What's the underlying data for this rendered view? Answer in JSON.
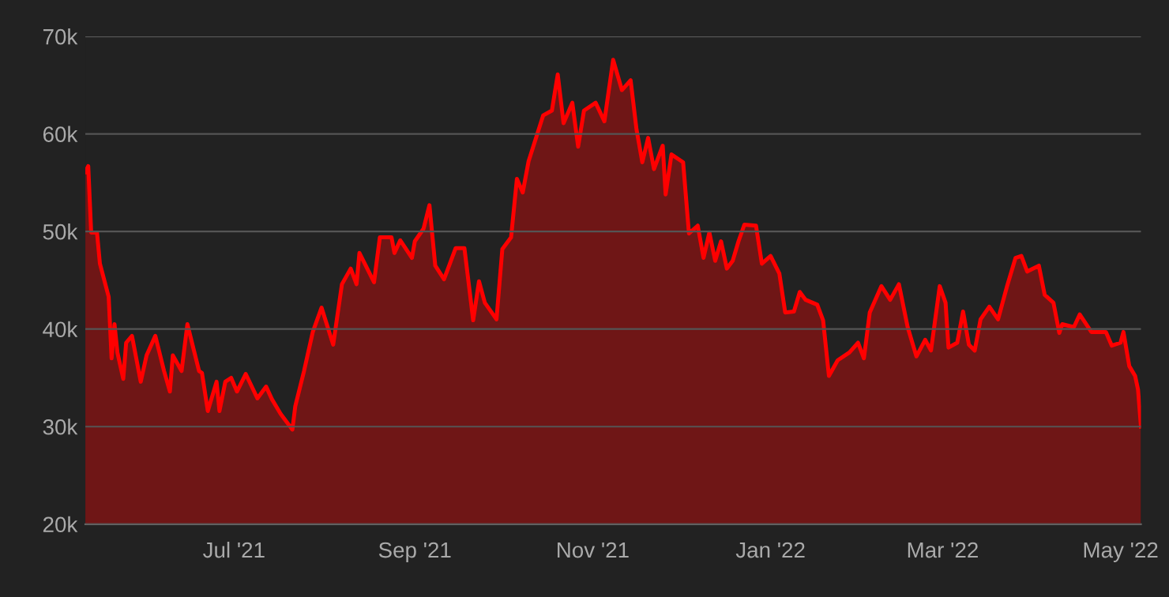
{
  "chart_data": {
    "type": "area",
    "color": "#ff0000",
    "grid": "y",
    "legend": false,
    "marker": "none",
    "line_style": "solid",
    "ylim": [
      20000,
      70000
    ],
    "yticks": [
      {
        "value": 20000,
        "label": "20k"
      },
      {
        "value": 30000,
        "label": "30k"
      },
      {
        "value": 40000,
        "label": "40k"
      },
      {
        "value": 50000,
        "label": "50k"
      },
      {
        "value": 60000,
        "label": "60k"
      },
      {
        "value": 70000,
        "label": "70k"
      }
    ],
    "xlim": [
      "2021-05-11",
      "2022-05-08"
    ],
    "xticks": [
      {
        "value": "2021-07-01",
        "label": "Jul '21"
      },
      {
        "value": "2021-09-01",
        "label": "Sep '21"
      },
      {
        "value": "2021-11-01",
        "label": "Nov '21"
      },
      {
        "value": "2022-01-01",
        "label": "Jan '22"
      },
      {
        "value": "2022-03-01",
        "label": "Mar '22"
      },
      {
        "value": "2022-05-01",
        "label": "May '22"
      }
    ],
    "x": [
      "2021-05-11",
      "2021-05-12",
      "2021-05-13",
      "2021-05-15",
      "2021-05-16",
      "2021-05-19",
      "2021-05-20",
      "2021-05-21",
      "2021-05-22",
      "2021-05-24",
      "2021-05-25",
      "2021-05-27",
      "2021-05-30",
      "2021-06-01",
      "2021-06-04",
      "2021-06-07",
      "2021-06-09",
      "2021-06-10",
      "2021-06-13",
      "2021-06-15",
      "2021-06-19",
      "2021-06-20",
      "2021-06-22",
      "2021-06-25",
      "2021-06-26",
      "2021-06-28",
      "2021-06-30",
      "2021-07-02",
      "2021-07-05",
      "2021-07-09",
      "2021-07-12",
      "2021-07-14",
      "2021-07-17",
      "2021-07-21",
      "2021-07-22",
      "2021-07-25",
      "2021-07-28",
      "2021-07-31",
      "2021-08-04",
      "2021-08-07",
      "2021-08-10",
      "2021-08-12",
      "2021-08-13",
      "2021-08-18",
      "2021-08-20",
      "2021-08-24",
      "2021-08-25",
      "2021-08-27",
      "2021-08-31",
      "2021-09-01",
      "2021-09-04",
      "2021-09-06",
      "2021-09-08",
      "2021-09-11",
      "2021-09-12",
      "2021-09-15",
      "2021-09-18",
      "2021-09-21",
      "2021-09-23",
      "2021-09-25",
      "2021-09-29",
      "2021-10-01",
      "2021-10-04",
      "2021-10-06",
      "2021-10-08",
      "2021-10-10",
      "2021-10-15",
      "2021-10-18",
      "2021-10-20",
      "2021-10-22",
      "2021-10-25",
      "2021-10-27",
      "2021-10-29",
      "2021-11-02",
      "2021-11-05",
      "2021-11-08",
      "2021-11-11",
      "2021-11-14",
      "2021-11-16",
      "2021-11-18",
      "2021-11-20",
      "2021-11-22",
      "2021-11-25",
      "2021-11-26",
      "2021-11-28",
      "2021-12-02",
      "2021-12-04",
      "2021-12-07",
      "2021-12-09",
      "2021-12-11",
      "2021-12-13",
      "2021-12-15",
      "2021-12-17",
      "2021-12-19",
      "2021-12-21",
      "2021-12-23",
      "2021-12-27",
      "2021-12-29",
      "2022-01-01",
      "2022-01-04",
      "2022-01-06",
      "2022-01-09",
      "2022-01-11",
      "2022-01-13",
      "2022-01-17",
      "2022-01-19",
      "2022-01-21",
      "2022-01-24",
      "2022-01-28",
      "2022-01-31",
      "2022-02-02",
      "2022-02-04",
      "2022-02-08",
      "2022-02-11",
      "2022-02-14",
      "2022-02-17",
      "2022-02-20",
      "2022-02-23",
      "2022-02-25",
      "2022-02-28",
      "2022-03-02",
      "2022-03-03",
      "2022-03-06",
      "2022-03-08",
      "2022-03-10",
      "2022-03-12",
      "2022-03-14",
      "2022-03-17",
      "2022-03-20",
      "2022-03-23",
      "2022-03-26",
      "2022-03-28",
      "2022-03-30",
      "2022-04-03",
      "2022-04-05",
      "2022-04-08",
      "2022-04-10",
      "2022-04-11",
      "2022-04-15",
      "2022-04-17",
      "2022-04-21",
      "2022-04-24",
      "2022-04-26",
      "2022-04-28",
      "2022-05-01",
      "2022-05-02",
      "2022-05-04",
      "2022-05-06",
      "2022-05-07",
      "2022-05-08"
    ],
    "values": [
      56100,
      56700,
      49900,
      49900,
      46700,
      43300,
      37000,
      40500,
      37600,
      34900,
      38600,
      39300,
      34600,
      37300,
      39300,
      35700,
      33600,
      37300,
      35700,
      40500,
      35700,
      35500,
      31600,
      34600,
      31600,
      34600,
      35000,
      33600,
      35400,
      32900,
      34100,
      32800,
      31300,
      29700,
      32100,
      35700,
      39700,
      42200,
      38400,
      44600,
      46200,
      44600,
      47800,
      44800,
      49400,
      49400,
      47800,
      49100,
      47300,
      49000,
      50300,
      52700,
      46500,
      45100,
      45900,
      48300,
      48300,
      40900,
      44900,
      42700,
      41000,
      48200,
      49400,
      55400,
      54000,
      57200,
      61900,
      62400,
      66100,
      61100,
      63200,
      58700,
      62400,
      63200,
      61300,
      67600,
      64500,
      65500,
      60500,
      57100,
      59600,
      56400,
      58800,
      53800,
      57900,
      57100,
      49800,
      50600,
      47300,
      49900,
      47000,
      49000,
      46200,
      47000,
      49000,
      50700,
      50600,
      46700,
      47500,
      45700,
      41700,
      41800,
      43800,
      43000,
      42500,
      40900,
      35200,
      36800,
      37600,
      38600,
      37000,
      41700,
      44400,
      43000,
      44600,
      40200,
      37200,
      38900,
      37800,
      44400,
      42700,
      38100,
      38600,
      41800,
      38400,
      37800,
      41000,
      42300,
      41000,
      44300,
      47300,
      47500,
      45900,
      46500,
      43500,
      42700,
      39600,
      40500,
      40200,
      41500,
      39700,
      39700,
      39700,
      38300,
      38600,
      39700,
      36200,
      35200,
      33800,
      30000
    ]
  }
}
